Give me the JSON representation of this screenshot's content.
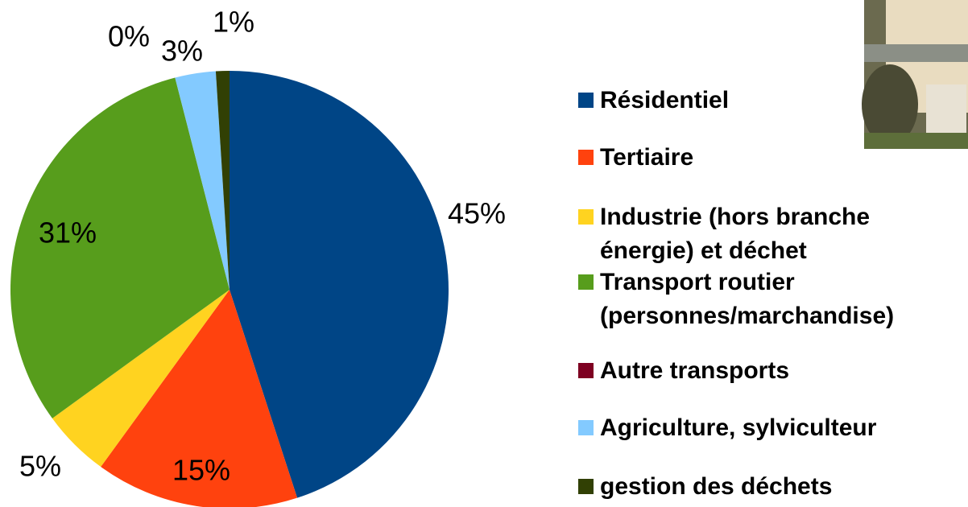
{
  "chart_data": {
    "type": "pie",
    "categories": [
      "Résidentiel",
      "Tertiaire",
      "Industrie (hors branche énergie) et déchet",
      "Transport routier (personnes/marchandise)",
      "Autre transports",
      "Agriculture, sylviculteur",
      "gestion des déchets"
    ],
    "values": [
      45,
      15,
      5,
      31,
      0,
      3,
      1
    ],
    "value_labels": [
      "45%",
      "15%",
      "5%",
      "31%",
      "0%",
      "3%",
      "1%"
    ],
    "colors": [
      "#004586",
      "#ff420e",
      "#ffd320",
      "#579d1c",
      "#7e0021",
      "#83caff",
      "#314004"
    ],
    "legend": "right"
  }
}
